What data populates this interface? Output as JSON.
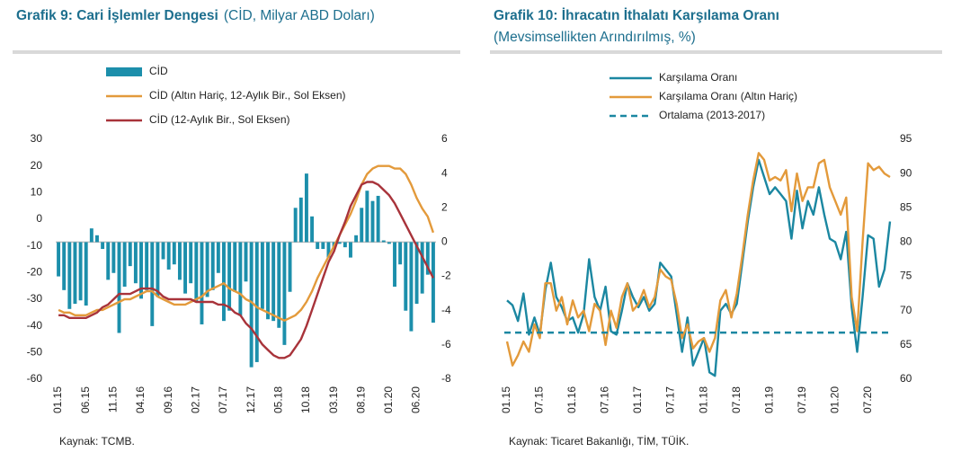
{
  "chart_data": [
    {
      "type": "combo",
      "title": "Grafik 9: Cari İşlemler Dengesi",
      "subtitle": "(CİD, Milyar ABD Doları)",
      "source": "Kaynak: TCMB.",
      "categories": [
        "01.15",
        null,
        null,
        null,
        null,
        "06.15",
        null,
        null,
        null,
        null,
        "11.15",
        null,
        null,
        null,
        null,
        "04.16",
        null,
        null,
        null,
        null,
        "09.16",
        null,
        null,
        null,
        null,
        "02.17",
        null,
        null,
        null,
        null,
        "07.17",
        null,
        null,
        null,
        null,
        "12.17",
        null,
        null,
        null,
        null,
        "05.18",
        null,
        null,
        null,
        null,
        "10.18",
        null,
        null,
        null,
        null,
        "03.19",
        null,
        null,
        null,
        null,
        "08.19",
        null,
        null,
        null,
        null,
        "01.20",
        null,
        null,
        null,
        null,
        "06.20",
        null,
        null,
        null
      ],
      "ylim": [
        -60,
        30
      ],
      "yticks": [
        30,
        20,
        10,
        0,
        -10,
        -20,
        -30,
        -40,
        -50,
        -60
      ],
      "y2lim": [
        -8,
        6
      ],
      "y2ticks": [
        6,
        4,
        2,
        0,
        -2,
        -4,
        -6,
        -8
      ],
      "series": [
        {
          "name": "CİD",
          "type": "bar",
          "axis": "y2",
          "color": "#1c8fab",
          "values": [
            -2.0,
            -2.8,
            -3.9,
            -3.6,
            -3.4,
            -3.7,
            0.8,
            0.4,
            -0.4,
            -2.2,
            -1.8,
            -5.3,
            -2.6,
            -1.4,
            -2.4,
            -3.3,
            -2.8,
            -4.9,
            -3.2,
            -1.0,
            -1.6,
            -1.3,
            -2.2,
            -3.0,
            -2.4,
            -3.5,
            -4.8,
            -3.2,
            -2.8,
            -1.8,
            -4.6,
            -4.0,
            -2.9,
            -4.3,
            -2.3,
            -7.3,
            -7.0,
            -3.9,
            -4.5,
            -4.6,
            -5.0,
            -6.0,
            -2.9,
            2.0,
            2.6,
            4.0,
            1.5,
            -0.4,
            -0.4,
            -0.9,
            -0.3,
            -0.1,
            -0.3,
            -0.9,
            0.4,
            2.0,
            3.0,
            2.4,
            2.7,
            0.1,
            -0.1,
            -2.6,
            -1.3,
            -4.0,
            -5.2,
            -3.6,
            -3.0,
            -1.9,
            -4.7
          ]
        },
        {
          "name": "CİD (Altın Hariç, 12-Aylık Bir., Sol Eksen)",
          "type": "line",
          "axis": "y",
          "color": "#e39a3b",
          "values": [
            -34,
            -35,
            -35,
            -36,
            -36,
            -36,
            -35,
            -34,
            -34,
            -33,
            -32,
            -31,
            -30,
            -30,
            -29,
            -28,
            -27,
            -27,
            -29,
            -30,
            -31,
            -32,
            -32,
            -32,
            -31,
            -30,
            -29,
            -27,
            -26,
            -25,
            -24,
            -26,
            -27,
            -28,
            -30,
            -31,
            -33,
            -34,
            -35,
            -36,
            -37,
            -38,
            -37,
            -36,
            -34,
            -31,
            -27,
            -22,
            -18,
            -14,
            -10,
            -6,
            -2,
            2,
            7,
            13,
            17,
            19,
            20,
            20,
            20,
            19,
            19,
            17,
            13,
            8,
            4,
            1,
            -5
          ]
        },
        {
          "name": "CİD (12-Aylık Bir., Sol Eksen)",
          "type": "line",
          "axis": "y",
          "color": "#a8333a",
          "values": [
            -36,
            -36,
            -37,
            -37,
            -37,
            -37,
            -36,
            -35,
            -33,
            -32,
            -30,
            -28,
            -28,
            -28,
            -27,
            -26,
            -26,
            -26,
            -27,
            -29,
            -30,
            -30,
            -30,
            -30,
            -30,
            -31,
            -31,
            -31,
            -31,
            -32,
            -32,
            -33,
            -35,
            -36,
            -39,
            -41,
            -44,
            -47,
            -49,
            -51,
            -52,
            -52,
            -51,
            -48,
            -45,
            -40,
            -34,
            -28,
            -22,
            -16,
            -12,
            -6,
            -1,
            5,
            9,
            13,
            14,
            14,
            13,
            11,
            9,
            6,
            2,
            -2,
            -6,
            -10,
            -14,
            -18,
            -22
          ]
        }
      ]
    },
    {
      "type": "line",
      "title": "Grafik 10: İhracatın İthalatı Karşılama Oranı",
      "subtitle": "(Mevsimsellikten Arındırılmış, %)",
      "source": "Kaynak: Ticaret Bakanlığı, TİM, TÜİK.",
      "categories": [
        "01.15",
        null,
        null,
        null,
        null,
        null,
        "07.15",
        null,
        null,
        null,
        null,
        null,
        "01.16",
        null,
        null,
        null,
        null,
        null,
        "07.16",
        null,
        null,
        null,
        null,
        null,
        "01.17",
        null,
        null,
        null,
        null,
        null,
        "07.17",
        null,
        null,
        null,
        null,
        null,
        "01.18",
        null,
        null,
        null,
        null,
        null,
        "07.18",
        null,
        null,
        null,
        null,
        null,
        "01.19",
        null,
        null,
        null,
        null,
        null,
        "07.19",
        null,
        null,
        null,
        null,
        null,
        "01.20",
        null,
        null,
        null,
        null,
        null,
        "07.20",
        null,
        null,
        null,
        null
      ],
      "ylim": [
        60,
        95
      ],
      "yticks": [
        95,
        90,
        85,
        80,
        75,
        70,
        65,
        60
      ],
      "series": [
        {
          "name": "Karşılama Oranı",
          "type": "line",
          "color": "#1b87a1",
          "values": [
            71.5,
            70.8,
            68.5,
            72.5,
            66.5,
            69,
            66.5,
            73,
            77,
            72,
            70.5,
            68.5,
            69,
            66.8,
            69.5,
            77.5,
            72,
            70,
            73.5,
            67,
            66.5,
            70,
            74,
            72,
            70.5,
            72,
            70,
            71,
            77,
            76,
            75,
            69.5,
            64,
            69,
            62,
            64,
            66,
            61,
            60.5,
            70,
            71,
            69.5,
            71,
            77,
            83,
            88,
            92,
            89.5,
            87,
            88,
            87,
            86,
            80.5,
            87.5,
            82,
            86,
            84,
            88,
            84,
            80.5,
            80,
            77.5,
            81.5,
            70.5,
            64,
            72,
            81,
            80.5,
            73.5,
            76,
            83
          ]
        },
        {
          "name": "Karşılama Oranı (Altın Hariç)",
          "type": "line",
          "color": "#e39a3b",
          "values": [
            65.5,
            62,
            63.5,
            65.5,
            64,
            68,
            66,
            74,
            74,
            70,
            72,
            68,
            71.5,
            69,
            70,
            67,
            71,
            70,
            65,
            70,
            67.5,
            72,
            74,
            70,
            71,
            73,
            70.5,
            72,
            76,
            75,
            74.5,
            71,
            66,
            68,
            64.5,
            65.5,
            66,
            64,
            66,
            71.5,
            73,
            69,
            72.5,
            78,
            84,
            89,
            93,
            92,
            89,
            89.5,
            89,
            90.5,
            84.5,
            90,
            86,
            88,
            88,
            91.5,
            92,
            88,
            86,
            84,
            86.5,
            72,
            67,
            80,
            91.5,
            90.5,
            91,
            90,
            89.5
          ]
        },
        {
          "name": "Ortalama (2013-2017)",
          "type": "hline",
          "dashed": true,
          "color": "#1b87a1",
          "value": 66.8
        }
      ]
    }
  ]
}
